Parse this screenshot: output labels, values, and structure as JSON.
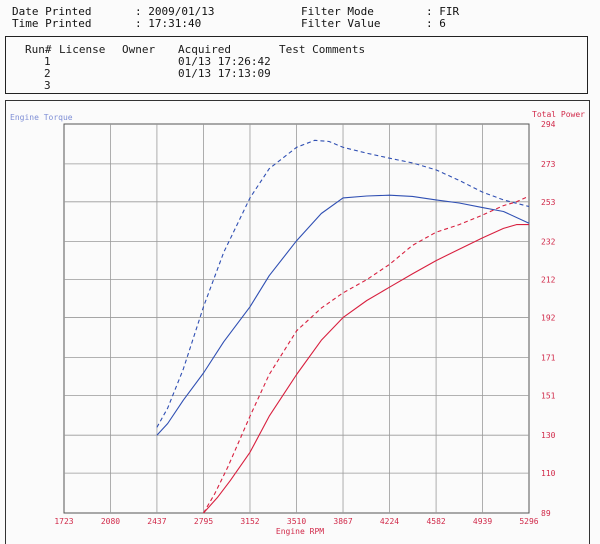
{
  "header": {
    "date_label": "Date Printed",
    "date_value": ": 2009/01/13",
    "time_label": "Time Printed",
    "time_value": ": 17:31:40",
    "filter_mode_label": "Filter Mode",
    "filter_mode_value": ": FIR",
    "filter_value_label": "Filter Value",
    "filter_value_value": ": 6"
  },
  "runs_table": {
    "columns": [
      "Run#",
      "License",
      "Owner",
      "Acquired",
      "Test Comments"
    ],
    "rows": [
      {
        "run": "1",
        "acquired": "01/13 17:26:42"
      },
      {
        "run": "2",
        "acquired": "01/13 17:13:09"
      },
      {
        "run": "3",
        "acquired": ""
      }
    ]
  },
  "colors": {
    "torque": "#2f4fb3",
    "torque_label": "#8ea0dc",
    "power": "#d8203f",
    "grid": "#9a9a9a"
  },
  "chart_data": {
    "type": "line",
    "xlabel": "Engine RPM",
    "ylabel_left": "Engine Torque",
    "ylabel_right": "Total Power",
    "x_ticks": [
      1723,
      2080,
      2437,
      2795,
      3152,
      3510,
      3867,
      4224,
      4582,
      4939,
      5296
    ],
    "xlim": [
      1723,
      5296
    ],
    "right_ticks": [
      89,
      110,
      130,
      151,
      171,
      192,
      212,
      232,
      253,
      273,
      294
    ],
    "right_ylim": [
      89,
      294
    ],
    "left_ticks": [
      "",
      "",
      "",
      "",
      "",
      "",
      "",
      "",
      "",
      "",
      ""
    ],
    "left_ylim": [
      0,
      10
    ],
    "grid": true,
    "series": [
      {
        "axis": "left",
        "style": "solid",
        "color": "#2f4fb3",
        "x": [
          2437,
          2520,
          2640,
          2795,
          2950,
          3152,
          3300,
          3510,
          3700,
          3867,
          4050,
          4224,
          4400,
          4582,
          4760,
          4939,
          5100,
          5296
        ],
        "y": [
          2.0,
          2.3,
          2.9,
          3.6,
          4.4,
          5.3,
          6.1,
          7.0,
          7.7,
          8.1,
          8.15,
          8.17,
          8.14,
          8.05,
          7.97,
          7.85,
          7.75,
          7.45
        ]
      },
      {
        "axis": "left",
        "style": "dashed",
        "color": "#2f4fb3",
        "x": [
          2437,
          2520,
          2640,
          2795,
          2950,
          3152,
          3300,
          3510,
          3650,
          3760,
          3867,
          4050,
          4224,
          4400,
          4582,
          4760,
          4939,
          5100,
          5296
        ],
        "y": [
          2.2,
          2.7,
          3.7,
          5.3,
          6.7,
          8.1,
          8.85,
          9.4,
          9.58,
          9.55,
          9.4,
          9.25,
          9.12,
          9.0,
          8.82,
          8.55,
          8.25,
          8.05,
          7.88
        ]
      },
      {
        "axis": "right",
        "style": "solid",
        "color": "#d8203f",
        "x": [
          2795,
          2900,
          3000,
          3152,
          3300,
          3510,
          3700,
          3867,
          4050,
          4224,
          4400,
          4582,
          4760,
          4939,
          5100,
          5200,
          5296
        ],
        "y": [
          89,
          97,
          106,
          121,
          140,
          162,
          180,
          192,
          201,
          208,
          215,
          222,
          228,
          234,
          239,
          241,
          241
        ]
      },
      {
        "axis": "right",
        "style": "dashed",
        "color": "#d8203f",
        "x": [
          2795,
          2880,
          2980,
          3152,
          3300,
          3510,
          3700,
          3867,
          4050,
          4224,
          4400,
          4582,
          4760,
          4939,
          5100,
          5200,
          5296
        ],
        "y": [
          89,
          99,
          113,
          140,
          162,
          185,
          197,
          205,
          212,
          220,
          230,
          237,
          241,
          246,
          251,
          253,
          256
        ]
      }
    ]
  }
}
